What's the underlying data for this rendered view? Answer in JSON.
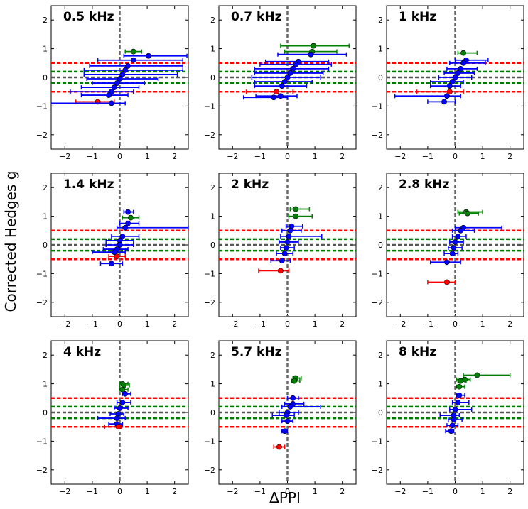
{
  "chart_data": {
    "type": "scatter",
    "xlabel": "ΔPPI",
    "ylabel": "Corrected Hedges g",
    "xlim": [
      -2.5,
      2.5
    ],
    "ylim": [
      -2.5,
      2.5
    ],
    "xticks": [
      -2,
      -1,
      0,
      1,
      2
    ],
    "yticks": [
      -2,
      -1,
      0,
      1,
      2
    ],
    "reference_lines": {
      "vertical": {
        "x": 0,
        "color": "#666666",
        "style": "dashed"
      },
      "horizontal": [
        {
          "y": 0.5,
          "color": "#ff0000"
        },
        {
          "y": 0.2,
          "color": "#007700"
        },
        {
          "y": 0.0,
          "color": "#555555"
        },
        {
          "y": -0.2,
          "color": "#007700"
        },
        {
          "y": -0.5,
          "color": "#ff0000"
        }
      ]
    },
    "colors": {
      "large": "#008000",
      "medium": "#0000ff",
      "small": "#ff0000"
    },
    "panels": [
      {
        "title": "0.5 kHz",
        "points": [
          {
            "x": 0.5,
            "y": 0.9,
            "xerr": [
              0.3,
              0.3
            ],
            "group": "large"
          },
          {
            "x": 1.05,
            "y": 0.75,
            "xerr": [
              0.9,
              1.4
            ],
            "group": "medium"
          },
          {
            "x": 0.5,
            "y": 0.6,
            "xerr": [
              1.3,
              1.8
            ],
            "group": "medium"
          },
          {
            "x": 0.3,
            "y": 0.4,
            "xerr": [
              1.4,
              2.0
            ],
            "group": "medium"
          },
          {
            "x": 0.2,
            "y": 0.25,
            "xerr": [
              1.5,
              2.1
            ],
            "group": "medium"
          },
          {
            "x": 0.1,
            "y": 0.1,
            "xerr": [
              1.4,
              2.0
            ],
            "group": "medium"
          },
          {
            "x": 0.0,
            "y": -0.05,
            "xerr": [
              1.2,
              1.4
            ],
            "group": "medium"
          },
          {
            "x": -0.1,
            "y": -0.2,
            "xerr": [
              0.9,
              1.0
            ],
            "group": "medium"
          },
          {
            "x": -0.2,
            "y": -0.35,
            "xerr": [
              1.2,
              0.9
            ],
            "group": "medium"
          },
          {
            "x": -0.3,
            "y": -0.5,
            "xerr": [
              1.5,
              0.8
            ],
            "group": "medium"
          },
          {
            "x": -0.4,
            "y": -0.62,
            "xerr": [
              1.0,
              0.7
            ],
            "group": "medium"
          },
          {
            "x": -0.8,
            "y": -0.85,
            "xerr": [
              0.8,
              0.6
            ],
            "group": "small"
          },
          {
            "x": -0.3,
            "y": -0.9,
            "xerr": [
              2.3,
              0.5
            ],
            "group": "medium"
          }
        ]
      },
      {
        "title": "0.7 kHz",
        "points": [
          {
            "x": 0.95,
            "y": 1.1,
            "xerr": [
              1.2,
              1.3
            ],
            "group": "large"
          },
          {
            "x": 0.9,
            "y": 0.9,
            "xerr": [
              1.0,
              0.9
            ],
            "group": "large"
          },
          {
            "x": 0.85,
            "y": 0.8,
            "xerr": [
              1.2,
              1.3
            ],
            "group": "medium"
          },
          {
            "x": 0.4,
            "y": 0.55,
            "xerr": [
              1.2,
              1.1
            ],
            "group": "medium"
          },
          {
            "x": 0.3,
            "y": 0.45,
            "xerr": [
              1.3,
              1.3
            ],
            "group": "medium"
          },
          {
            "x": 0.2,
            "y": 0.3,
            "xerr": [
              1.4,
              1.3
            ],
            "group": "medium"
          },
          {
            "x": 0.1,
            "y": 0.15,
            "xerr": [
              1.3,
              1.2
            ],
            "group": "medium"
          },
          {
            "x": 0.0,
            "y": 0.0,
            "xerr": [
              1.3,
              1.2
            ],
            "group": "medium"
          },
          {
            "x": -0.1,
            "y": -0.15,
            "xerr": [
              1.1,
              1.0
            ],
            "group": "medium"
          },
          {
            "x": -0.2,
            "y": -0.3,
            "xerr": [
              1.0,
              0.9
            ],
            "group": "medium"
          },
          {
            "x": -0.4,
            "y": -0.5,
            "xerr": [
              1.1,
              0.6
            ],
            "group": "small"
          },
          {
            "x": -0.25,
            "y": -0.65,
            "xerr": [
              0.9,
              0.6
            ],
            "group": "medium"
          },
          {
            "x": -0.5,
            "y": -0.7,
            "xerr": [
              1.1,
              0.5
            ],
            "group": "medium"
          }
        ]
      },
      {
        "title": "1 kHz",
        "points": [
          {
            "x": 0.3,
            "y": 0.85,
            "xerr": [
              0.2,
              0.5
            ],
            "group": "large"
          },
          {
            "x": 0.4,
            "y": 0.6,
            "xerr": [
              0.4,
              0.8
            ],
            "group": "medium"
          },
          {
            "x": 0.3,
            "y": 0.5,
            "xerr": [
              0.5,
              0.8
            ],
            "group": "medium"
          },
          {
            "x": 0.2,
            "y": 0.3,
            "xerr": [
              0.5,
              0.6
            ],
            "group": "medium"
          },
          {
            "x": 0.1,
            "y": 0.15,
            "xerr": [
              0.5,
              0.6
            ],
            "group": "medium"
          },
          {
            "x": 0.0,
            "y": 0.0,
            "xerr": [
              0.6,
              0.6
            ],
            "group": "medium"
          },
          {
            "x": -0.1,
            "y": -0.15,
            "xerr": [
              0.8,
              0.4
            ],
            "group": "medium"
          },
          {
            "x": -0.2,
            "y": -0.3,
            "xerr": [
              0.7,
              0.4
            ],
            "group": "medium"
          },
          {
            "x": -0.2,
            "y": -0.5,
            "xerr": [
              1.2,
              0.5
            ],
            "group": "small"
          },
          {
            "x": -0.3,
            "y": -0.65,
            "xerr": [
              1.9,
              0.5
            ],
            "group": "medium"
          },
          {
            "x": -0.4,
            "y": -0.85,
            "xerr": [
              0.6,
              0.4
            ],
            "group": "medium"
          }
        ]
      },
      {
        "title": "1.4 kHz",
        "points": [
          {
            "x": 0.3,
            "y": 1.15,
            "xerr": [
              0.15,
              0.2
            ],
            "group": "medium"
          },
          {
            "x": 0.4,
            "y": 0.95,
            "xerr": [
              0.3,
              0.3
            ],
            "group": "large"
          },
          {
            "x": 0.3,
            "y": 0.75,
            "xerr": [
              0.3,
              0.4
            ],
            "group": "medium"
          },
          {
            "x": 0.2,
            "y": 0.6,
            "xerr": [
              0.3,
              2.3
            ],
            "group": "medium"
          },
          {
            "x": 0.1,
            "y": 0.3,
            "xerr": [
              0.4,
              0.6
            ],
            "group": "medium"
          },
          {
            "x": 0.0,
            "y": 0.15,
            "xerr": [
              0.5,
              0.5
            ],
            "group": "medium"
          },
          {
            "x": 0.0,
            "y": 0.0,
            "xerr": [
              0.5,
              0.5
            ],
            "group": "medium"
          },
          {
            "x": -0.1,
            "y": -0.15,
            "xerr": [
              0.5,
              0.4
            ],
            "group": "medium"
          },
          {
            "x": -0.2,
            "y": -0.25,
            "xerr": [
              0.8,
              0.4
            ],
            "group": "medium"
          },
          {
            "x": -0.1,
            "y": -0.4,
            "xerr": [
              0.3,
              0.3
            ],
            "group": "small"
          },
          {
            "x": -0.3,
            "y": -0.65,
            "xerr": [
              0.4,
              0.4
            ],
            "group": "medium"
          }
        ]
      },
      {
        "title": "2 kHz",
        "points": [
          {
            "x": 0.3,
            "y": 1.25,
            "xerr": [
              0.2,
              0.5
            ],
            "group": "large"
          },
          {
            "x": 0.3,
            "y": 1.0,
            "xerr": [
              0.25,
              0.6
            ],
            "group": "large"
          },
          {
            "x": 0.15,
            "y": 0.65,
            "xerr": [
              0.2,
              0.4
            ],
            "group": "medium"
          },
          {
            "x": 0.1,
            "y": 0.5,
            "xerr": [
              0.3,
              0.4
            ],
            "group": "medium"
          },
          {
            "x": 0.05,
            "y": 0.3,
            "xerr": [
              0.3,
              1.2
            ],
            "group": "medium"
          },
          {
            "x": 0.0,
            "y": 0.1,
            "xerr": [
              0.3,
              0.4
            ],
            "group": "medium"
          },
          {
            "x": -0.05,
            "y": -0.1,
            "xerr": [
              0.2,
              0.3
            ],
            "group": "medium"
          },
          {
            "x": -0.1,
            "y": -0.3,
            "xerr": [
              0.3,
              0.3
            ],
            "group": "medium"
          },
          {
            "x": -0.2,
            "y": -0.55,
            "xerr": [
              0.4,
              0.3
            ],
            "group": "medium"
          },
          {
            "x": -0.25,
            "y": -0.9,
            "xerr": [
              0.8,
              0.3
            ],
            "group": "small"
          }
        ]
      },
      {
        "title": "2.8 kHz",
        "points": [
          {
            "x": 0.4,
            "y": 1.15,
            "xerr": [
              0.3,
              0.6
            ],
            "group": "large"
          },
          {
            "x": 0.45,
            "y": 1.1,
            "xerr": [
              0.3,
              0.4
            ],
            "group": "large"
          },
          {
            "x": 0.3,
            "y": 0.6,
            "xerr": [
              0.3,
              1.4
            ],
            "group": "medium"
          },
          {
            "x": 0.2,
            "y": 0.5,
            "xerr": [
              0.3,
              0.5
            ],
            "group": "medium"
          },
          {
            "x": 0.1,
            "y": 0.3,
            "xerr": [
              0.2,
              0.3
            ],
            "group": "medium"
          },
          {
            "x": 0.0,
            "y": 0.1,
            "xerr": [
              0.2,
              0.3
            ],
            "group": "medium"
          },
          {
            "x": -0.05,
            "y": -0.1,
            "xerr": [
              0.2,
              0.3
            ],
            "group": "medium"
          },
          {
            "x": -0.1,
            "y": -0.3,
            "xerr": [
              0.3,
              0.2
            ],
            "group": "medium"
          },
          {
            "x": -0.3,
            "y": -0.6,
            "xerr": [
              0.6,
              0.5
            ],
            "group": "medium"
          },
          {
            "x": -0.3,
            "y": -1.3,
            "xerr": [
              0.7,
              0.3
            ],
            "group": "small"
          }
        ]
      },
      {
        "title": "4 kHz",
        "points": [
          {
            "x": 0.1,
            "y": 1.0,
            "xerr": [
              0.1,
              0.2
            ],
            "group": "large"
          },
          {
            "x": 0.15,
            "y": 0.95,
            "xerr": [
              0.15,
              0.2
            ],
            "group": "large"
          },
          {
            "x": 0.1,
            "y": 0.8,
            "xerr": [
              0.1,
              0.2
            ],
            "group": "large"
          },
          {
            "x": 0.2,
            "y": 0.65,
            "xerr": [
              0.1,
              0.2
            ],
            "group": "medium"
          },
          {
            "x": 0.1,
            "y": 0.35,
            "xerr": [
              0.2,
              0.3
            ],
            "group": "medium"
          },
          {
            "x": 0.0,
            "y": 0.15,
            "xerr": [
              0.2,
              0.3
            ],
            "group": "medium"
          },
          {
            "x": -0.05,
            "y": -0.05,
            "xerr": [
              0.3,
              0.2
            ],
            "group": "medium"
          },
          {
            "x": -0.1,
            "y": -0.2,
            "xerr": [
              0.7,
              0.3
            ],
            "group": "medium"
          },
          {
            "x": -0.1,
            "y": -0.4,
            "xerr": [
              0.3,
              0.2
            ],
            "group": "medium"
          },
          {
            "x": -0.05,
            "y": -0.5,
            "xerr": [
              0.5,
              0.1
            ],
            "group": "small"
          }
        ]
      },
      {
        "title": "5.7 kHz",
        "points": [
          {
            "x": 0.3,
            "y": 1.2,
            "xerr": [
              0.1,
              0.2
            ],
            "group": "large"
          },
          {
            "x": 0.25,
            "y": 1.1,
            "xerr": [
              0.1,
              0.2
            ],
            "group": "large"
          },
          {
            "x": 0.2,
            "y": 0.5,
            "xerr": [
              0.2,
              0.2
            ],
            "group": "medium"
          },
          {
            "x": 0.2,
            "y": 0.3,
            "xerr": [
              0.3,
              0.4
            ],
            "group": "medium"
          },
          {
            "x": 0.1,
            "y": 0.2,
            "xerr": [
              0.3,
              1.1
            ],
            "group": "medium"
          },
          {
            "x": 0.0,
            "y": 0.0,
            "xerr": [
              0.3,
              0.4
            ],
            "group": "medium"
          },
          {
            "x": -0.05,
            "y": -0.1,
            "xerr": [
              0.5,
              0.3
            ],
            "group": "medium"
          },
          {
            "x": 0.0,
            "y": -0.3,
            "xerr": [
              0.2,
              0.2
            ],
            "group": "medium"
          },
          {
            "x": -0.1,
            "y": -0.65,
            "xerr": [
              0.1,
              0.1
            ],
            "group": "medium"
          },
          {
            "x": -0.3,
            "y": -1.2,
            "xerr": [
              0.2,
              0.2
            ],
            "group": "small"
          }
        ]
      },
      {
        "title": "8 kHz",
        "points": [
          {
            "x": 0.8,
            "y": 1.3,
            "xerr": [
              0.5,
              1.2
            ],
            "group": "large"
          },
          {
            "x": 0.35,
            "y": 1.15,
            "xerr": [
              0.3,
              0.2
            ],
            "group": "large"
          },
          {
            "x": 0.2,
            "y": 1.1,
            "xerr": [
              0.1,
              0.2
            ],
            "group": "large"
          },
          {
            "x": 0.15,
            "y": 0.9,
            "xerr": [
              0.1,
              0.2
            ],
            "group": "large"
          },
          {
            "x": 0.15,
            "y": 0.6,
            "xerr": [
              0.1,
              0.2
            ],
            "group": "medium"
          },
          {
            "x": 0.1,
            "y": 0.35,
            "xerr": [
              0.2,
              0.4
            ],
            "group": "medium"
          },
          {
            "x": 0.0,
            "y": 0.1,
            "xerr": [
              0.2,
              0.6
            ],
            "group": "medium"
          },
          {
            "x": -0.05,
            "y": -0.1,
            "xerr": [
              0.5,
              0.2
            ],
            "group": "medium"
          },
          {
            "x": -0.05,
            "y": -0.25,
            "xerr": [
              0.2,
              0.3
            ],
            "group": "medium"
          },
          {
            "x": -0.1,
            "y": -0.45,
            "xerr": [
              0.2,
              0.2
            ],
            "group": "medium"
          },
          {
            "x": -0.15,
            "y": -0.65,
            "xerr": [
              0.2,
              0.1
            ],
            "group": "medium"
          }
        ]
      }
    ]
  }
}
